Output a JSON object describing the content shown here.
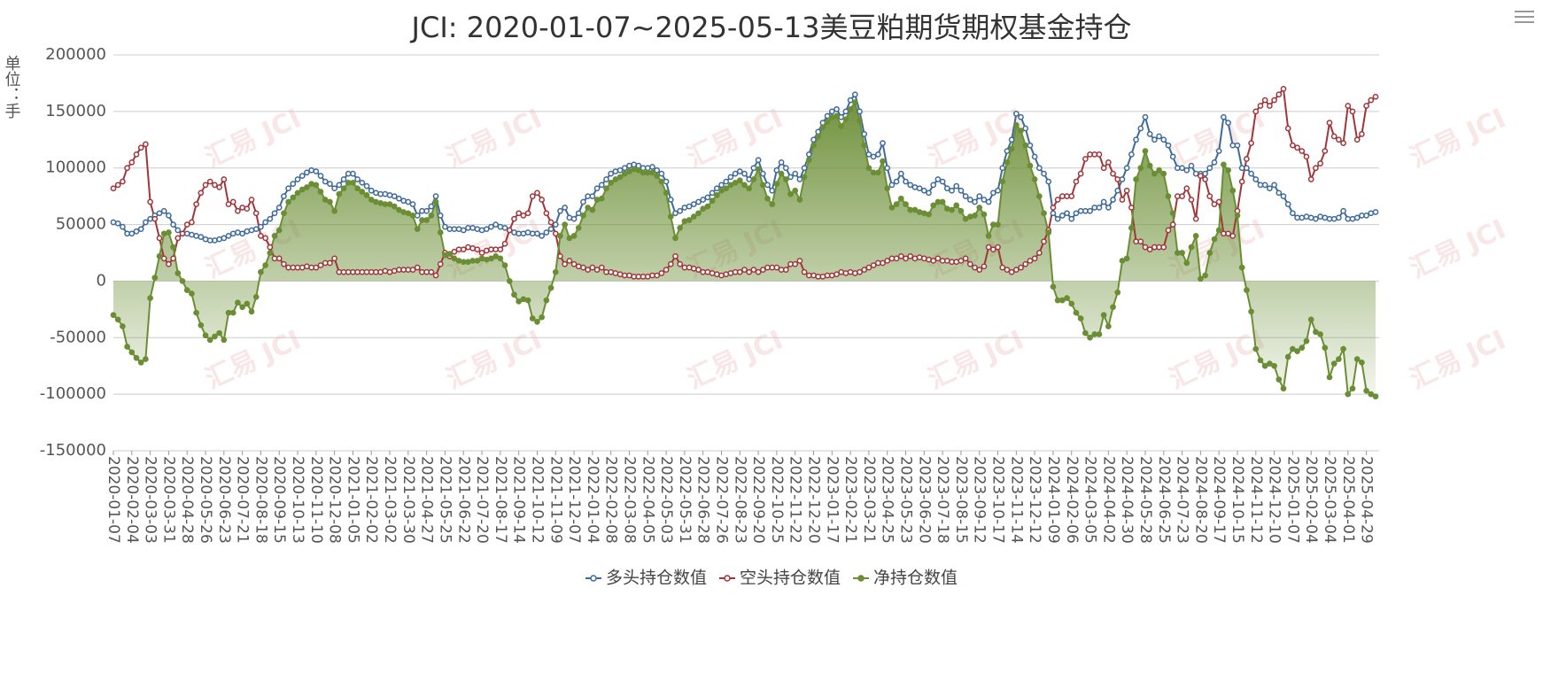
{
  "chart_data": {
    "type": "line",
    "title": "JCI: 2020-01-07~2025-05-13美豆粕期货期权基金持仓",
    "y_label": "单位：手",
    "watermark": "汇易 JCI",
    "ylim": [
      -150000,
      200000
    ],
    "yticks": [
      -150000,
      -100000,
      -50000,
      0,
      50000,
      100000,
      150000,
      200000
    ],
    "grid": true,
    "legend": "bottom",
    "categories": [
      "2020-01-07",
      null,
      null,
      null,
      "2020-02-04",
      null,
      null,
      null,
      "2020-03-03",
      null,
      null,
      null,
      "2020-03-31",
      null,
      null,
      null,
      "2020-04-28",
      null,
      null,
      null,
      "2020-05-26",
      null,
      null,
      null,
      "2020-06-23",
      null,
      null,
      null,
      "2020-07-21",
      null,
      null,
      null,
      "2020-08-18",
      null,
      null,
      null,
      "2020-09-15",
      null,
      null,
      null,
      "2020-10-13",
      null,
      null,
      null,
      "2020-11-10",
      null,
      null,
      null,
      "2020-12-08",
      null,
      null,
      null,
      "2021-01-05",
      null,
      null,
      null,
      "2021-02-02",
      null,
      null,
      null,
      "2021-03-02",
      null,
      null,
      null,
      "2021-03-30",
      null,
      null,
      null,
      "2021-04-27",
      null,
      null,
      null,
      "2021-05-25",
      null,
      null,
      null,
      "2021-06-22",
      null,
      null,
      null,
      "2021-07-20",
      null,
      null,
      null,
      "2021-08-17",
      null,
      null,
      null,
      "2021-09-14",
      null,
      null,
      null,
      "2021-10-12",
      null,
      null,
      null,
      "2021-11-09",
      null,
      null,
      null,
      "2021-12-07",
      null,
      null,
      null,
      "2022-01-04",
      null,
      null,
      null,
      "2022-02-08",
      null,
      null,
      null,
      "2022-03-08",
      null,
      null,
      null,
      "2022-04-05",
      null,
      null,
      null,
      "2022-05-03",
      null,
      null,
      null,
      "2022-05-31",
      null,
      null,
      null,
      "2022-06-28",
      null,
      null,
      null,
      "2022-07-26",
      null,
      null,
      null,
      "2022-08-23",
      null,
      null,
      null,
      "2022-09-20",
      null,
      null,
      null,
      "2022-10-25",
      null,
      null,
      null,
      "2022-11-22",
      null,
      null,
      null,
      "2022-12-20",
      null,
      null,
      null,
      "2023-01-17",
      null,
      null,
      null,
      "2023-02-21",
      null,
      null,
      null,
      "2023-03-21",
      null,
      null,
      null,
      "2023-04-25",
      null,
      null,
      null,
      "2023-05-23",
      null,
      null,
      null,
      "2023-06-20",
      null,
      null,
      null,
      "2023-07-18",
      null,
      null,
      null,
      "2023-08-15",
      null,
      null,
      null,
      "2023-09-12",
      null,
      null,
      null,
      "2023-10-17",
      null,
      null,
      null,
      "2023-11-14",
      null,
      null,
      null,
      "2023-12-12",
      null,
      null,
      null,
      "2024-01-09",
      null,
      null,
      null,
      "2024-02-06",
      null,
      null,
      null,
      "2024-03-05",
      null,
      null,
      null,
      "2024-04-02",
      null,
      null,
      null,
      "2024-04-30",
      null,
      null,
      null,
      "2024-05-28",
      null,
      null,
      null,
      "2024-06-25",
      null,
      null,
      null,
      "2024-07-23",
      null,
      null,
      null,
      "2024-08-20",
      null,
      null,
      null,
      "2024-09-17",
      null,
      null,
      null,
      "2024-10-15",
      null,
      null,
      null,
      "2024-11-12",
      null,
      null,
      null,
      "2024-12-10",
      null,
      null,
      null,
      "2025-01-07",
      null,
      null,
      null,
      "2025-02-04",
      null,
      null,
      null,
      "2025-03-04",
      null,
      null,
      null,
      "2025-04-01",
      null,
      null,
      null,
      "2025-04-29",
      null,
      null
    ],
    "series": [
      {
        "name": "多头持仓数值",
        "color": "#3d6a9b",
        "values": [
          52000,
          51000,
          48000,
          42000,
          42000,
          44000,
          46000,
          52000,
          55000,
          58000,
          60000,
          62000,
          58000,
          50000,
          45000,
          42000,
          42000,
          41000,
          40000,
          39000,
          37000,
          36000,
          36000,
          37000,
          38000,
          40000,
          42000,
          43000,
          42000,
          44000,
          45000,
          46000,
          48000,
          52000,
          55000,
          60000,
          65000,
          75000,
          82000,
          86000,
          90000,
          93000,
          96000,
          98000,
          97000,
          93000,
          88000,
          86000,
          82000,
          85000,
          90000,
          95000,
          95000,
          90000,
          87000,
          84000,
          80000,
          78000,
          77000,
          77000,
          76000,
          75000,
          73000,
          71000,
          70000,
          68000,
          58000,
          62000,
          62000,
          66000,
          75000,
          58000,
          48000,
          46000,
          46000,
          46000,
          45000,
          47000,
          47000,
          46000,
          45000,
          46000,
          48000,
          50000,
          48000,
          47000,
          45000,
          43000,
          42000,
          42000,
          43000,
          42000,
          42000,
          40000,
          43000,
          46000,
          50000,
          62000,
          65000,
          56000,
          55000,
          60000,
          70000,
          75000,
          75000,
          82000,
          85000,
          90000,
          95000,
          97000,
          98000,
          100000,
          102000,
          103000,
          102000,
          100000,
          100000,
          101000,
          98000,
          95000,
          88000,
          72000,
          60000,
          62000,
          65000,
          66000,
          68000,
          70000,
          72000,
          74000,
          78000,
          82000,
          85000,
          88000,
          92000,
          95000,
          97000,
          95000,
          90000,
          100000,
          107000,
          95000,
          85000,
          80000,
          98000,
          105000,
          100000,
          92000,
          95000,
          90000,
          100000,
          112000,
          125000,
          132000,
          140000,
          146000,
          150000,
          152000,
          145000,
          150000,
          160000,
          165000,
          150000,
          130000,
          112000,
          110000,
          112000,
          122000,
          100000,
          85000,
          88000,
          95000,
          88000,
          85000,
          83000,
          82000,
          80000,
          78000,
          85000,
          90000,
          88000,
          82000,
          80000,
          84000,
          80000,
          75000,
          72000,
          70000,
          75000,
          72000,
          70000,
          78000,
          80000,
          100000,
          115000,
          125000,
          148000,
          145000,
          135000,
          120000,
          110000,
          100000,
          95000,
          88000,
          60000,
          55000,
          58000,
          60000,
          55000,
          60000,
          62000,
          62000,
          62000,
          65000,
          65000,
          70000,
          65000,
          72000,
          80000,
          90000,
          100000,
          112000,
          125000,
          135000,
          145000,
          130000,
          125000,
          128000,
          125000,
          120000,
          110000,
          100000,
          100000,
          98000,
          102000,
          95000,
          95000,
          95000,
          100000,
          105000,
          115000,
          145000,
          140000,
          120000,
          120000,
          100000,
          100000,
          95000,
          90000,
          85000,
          85000,
          82000,
          85000,
          78000,
          75000,
          68000,
          60000,
          56000,
          56000,
          57000,
          56000,
          55000,
          57000,
          56000,
          55000,
          55000,
          56000,
          62000,
          55000,
          55000,
          56000,
          58000,
          58000,
          60000,
          61000
        ]
      },
      {
        "name": "空头持仓数值",
        "color": "#a0353a",
        "values": [
          82000,
          85000,
          88000,
          100000,
          105000,
          112000,
          118000,
          121000,
          70000,
          55000,
          38000,
          20000,
          15000,
          20000,
          38000,
          42000,
          50000,
          52000,
          68000,
          78000,
          85000,
          88000,
          85000,
          83000,
          90000,
          68000,
          70000,
          62000,
          65000,
          64000,
          72000,
          60000,
          40000,
          38000,
          30000,
          20000,
          20000,
          15000,
          12000,
          12000,
          12000,
          12000,
          13000,
          12000,
          12000,
          14000,
          16000,
          16000,
          20000,
          8000,
          8000,
          8000,
          8000,
          8000,
          8000,
          8000,
          8000,
          8000,
          8000,
          9000,
          8000,
          9000,
          10000,
          10000,
          10000,
          10000,
          12000,
          8000,
          8000,
          8000,
          5000,
          15000,
          25000,
          22000,
          26000,
          28000,
          28000,
          30000,
          29000,
          28000,
          25000,
          27000,
          28000,
          28000,
          28000,
          33000,
          45000,
          55000,
          60000,
          58000,
          60000,
          75000,
          78000,
          72000,
          60000,
          52000,
          42000,
          22000,
          15000,
          18000,
          15000,
          13000,
          12000,
          10000,
          12000,
          10000,
          12000,
          8000,
          8000,
          7000,
          6000,
          5000,
          5000,
          4000,
          4000,
          4000,
          4000,
          5000,
          5000,
          7000,
          10000,
          15000,
          22000,
          15000,
          12000,
          12000,
          11000,
          10000,
          8000,
          8000,
          7000,
          6000,
          5000,
          6000,
          7000,
          8000,
          8000,
          10000,
          8000,
          10000,
          8000,
          10000,
          12000,
          12000,
          12000,
          10000,
          10000,
          15000,
          15000,
          18000,
          8000,
          5000,
          5000,
          4000,
          4000,
          5000,
          5000,
          6000,
          8000,
          7000,
          8000,
          7000,
          8000,
          10000,
          12000,
          14000,
          16000,
          16000,
          18000,
          20000,
          20000,
          22000,
          20000,
          22000,
          20000,
          21000,
          20000,
          19000,
          18000,
          20000,
          18000,
          18000,
          17000,
          17000,
          18000,
          20000,
          15000,
          12000,
          10000,
          13000,
          30000,
          28000,
          30000,
          12000,
          10000,
          8000,
          10000,
          12000,
          15000,
          18000,
          20000,
          25000,
          35000,
          45000,
          65000,
          72000,
          75000,
          75000,
          75000,
          88000,
          95000,
          108000,
          112000,
          112000,
          112000,
          100000,
          105000,
          95000,
          90000,
          72000,
          80000,
          65000,
          35000,
          35000,
          30000,
          28000,
          30000,
          30000,
          30000,
          45000,
          50000,
          75000,
          75000,
          82000,
          72000,
          55000,
          93000,
          90000,
          75000,
          68000,
          70000,
          42000,
          42000,
          40000,
          62000,
          88000,
          108000,
          122000,
          150000,
          155000,
          160000,
          155000,
          160000,
          165000,
          170000,
          135000,
          120000,
          118000,
          115000,
          110000,
          90000,
          100000,
          104000,
          115000,
          140000,
          128000,
          125000,
          122000,
          155000,
          150000,
          125000,
          130000,
          155000,
          160000,
          163000
        ]
      },
      {
        "name": "净持仓数值",
        "color": "#6b8e35",
        "area": true,
        "values": [
          -30000,
          -34000,
          -40000,
          -58000,
          -63000,
          -68000,
          -72000,
          -69000,
          -15000,
          3000,
          22000,
          42000,
          43000,
          30000,
          7000,
          0,
          -8000,
          -11000,
          -28000,
          -39000,
          -48000,
          -52000,
          -49000,
          -46000,
          -52000,
          -28000,
          -28000,
          -19000,
          -23000,
          -20000,
          -27000,
          -14000,
          8000,
          14000,
          25000,
          40000,
          45000,
          60000,
          70000,
          74000,
          78000,
          81000,
          83000,
          86000,
          85000,
          79000,
          72000,
          70000,
          62000,
          77000,
          82000,
          87000,
          87000,
          82000,
          79000,
          76000,
          72000,
          70000,
          69000,
          68000,
          68000,
          66000,
          63000,
          61000,
          60000,
          58000,
          46000,
          54000,
          54000,
          58000,
          70000,
          43000,
          23000,
          24000,
          20000,
          18000,
          17000,
          17000,
          18000,
          18000,
          20000,
          19000,
          20000,
          22000,
          20000,
          14000,
          0,
          -12000,
          -18000,
          -16000,
          -17000,
          -33000,
          -36000,
          -32000,
          -17000,
          -6000,
          8000,
          40000,
          50000,
          38000,
          40000,
          47000,
          58000,
          65000,
          63000,
          72000,
          73000,
          82000,
          87000,
          90000,
          92000,
          95000,
          97000,
          99000,
          98000,
          96000,
          96000,
          96000,
          93000,
          88000,
          78000,
          57000,
          38000,
          47000,
          53000,
          54000,
          57000,
          60000,
          64000,
          66000,
          71000,
          76000,
          80000,
          82000,
          85000,
          87000,
          89000,
          85000,
          82000,
          90000,
          99000,
          85000,
          73000,
          68000,
          86000,
          95000,
          90000,
          77000,
          80000,
          72000,
          92000,
          107000,
          120000,
          128000,
          136000,
          141000,
          145000,
          146000,
          137000,
          143000,
          152000,
          158000,
          142000,
          120000,
          100000,
          96000,
          96000,
          106000,
          82000,
          65000,
          68000,
          73000,
          68000,
          63000,
          63000,
          61000,
          60000,
          59000,
          67000,
          70000,
          70000,
          64000,
          63000,
          67000,
          62000,
          55000,
          57000,
          58000,
          65000,
          59000,
          40000,
          50000,
          50000,
          88000,
          105000,
          117000,
          138000,
          133000,
          120000,
          102000,
          90000,
          75000,
          60000,
          43000,
          -5000,
          -17000,
          -17000,
          -15000,
          -20000,
          -28000,
          -33000,
          -46000,
          -50000,
          -47000,
          -47000,
          -30000,
          -40000,
          -23000,
          -10000,
          18000,
          20000,
          47000,
          90000,
          100000,
          115000,
          102000,
          95000,
          98000,
          95000,
          75000,
          60000,
          25000,
          25000,
          16000,
          30000,
          40000,
          2000,
          5000,
          25000,
          37000,
          45000,
          103000,
          98000,
          80000,
          58000,
          12000,
          -8000,
          -27000,
          -60000,
          -70000,
          -75000,
          -73000,
          -75000,
          -87000,
          -95000,
          -67000,
          -60000,
          -62000,
          -59000,
          -53000,
          -34000,
          -45000,
          -47000,
          -59000,
          -85000,
          -73000,
          -69000,
          -60000,
          -100000,
          -95000,
          -69000,
          -72000,
          -97000,
          -100000,
          -102000
        ]
      }
    ]
  }
}
